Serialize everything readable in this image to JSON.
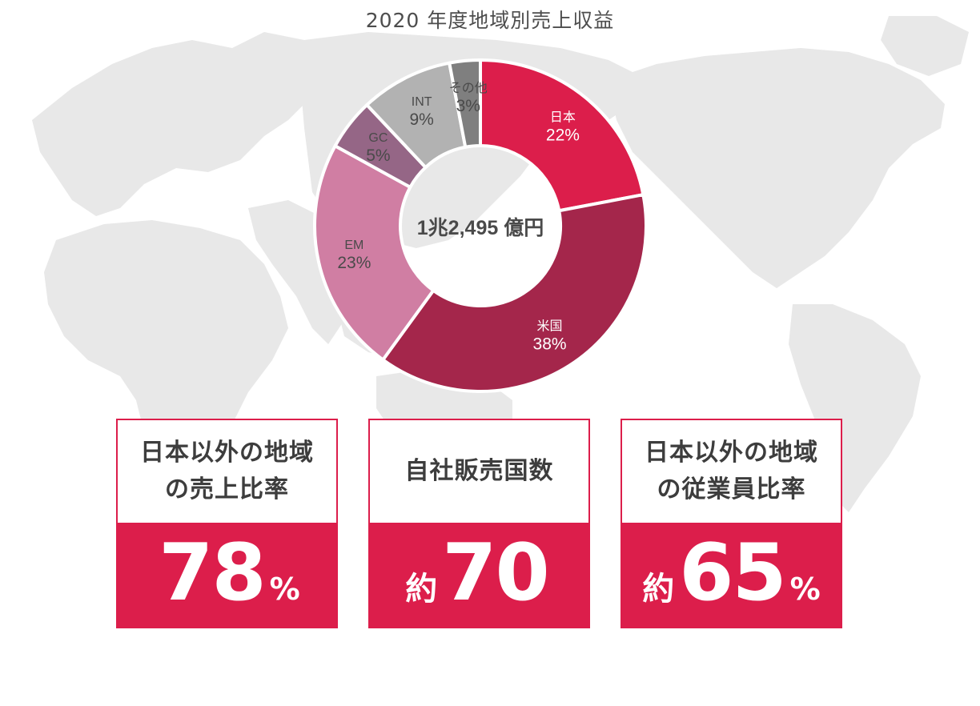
{
  "chart_data": {
    "type": "pie",
    "title": "2020 年度地域別売上収益",
    "center_label": "1兆2,495 億円",
    "slices": [
      {
        "label": "日本",
        "value": 22,
        "value_label": "22%",
        "color": "#dc1e4b"
      },
      {
        "label": "米国",
        "value": 38,
        "value_label": "38%",
        "color": "#a4264b"
      },
      {
        "label": "EM",
        "value": 23,
        "value_label": "23%",
        "color": "#d07ea3"
      },
      {
        "label": "GC",
        "value": 5,
        "value_label": "5%",
        "color": "#956686"
      },
      {
        "label": "INT",
        "value": 9,
        "value_label": "9%",
        "color": "#b2b2b2"
      },
      {
        "label": "その他",
        "value": 3,
        "value_label": "3%",
        "color": "#7f7f7f"
      }
    ]
  },
  "stats": [
    {
      "label": "日本以外の地域\nの売上比率",
      "prefix": "",
      "number": "78",
      "unit": "%"
    },
    {
      "label": "自社販売国数",
      "prefix": "約",
      "number": "70",
      "unit": ""
    },
    {
      "label": "日本以外の地域\nの従業員比率",
      "prefix": "約",
      "number": "65",
      "unit": "%"
    }
  ],
  "colors": {
    "accent": "#dc1e4b",
    "map": "#e6e6e6"
  }
}
